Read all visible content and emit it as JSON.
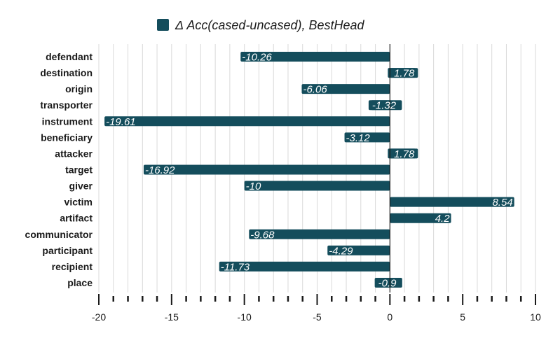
{
  "chart_data": {
    "type": "bar",
    "orientation": "horizontal",
    "title": "",
    "xlabel": "",
    "ylabel": "",
    "legend": {
      "placement": "top-center"
    },
    "series": [
      {
        "name": "Δ Acc(cased-uncased), BestHead",
        "color": "#144d5c",
        "values": [
          -10.26,
          1.78,
          -6.06,
          -1.32,
          -19.61,
          -3.12,
          1.78,
          -16.92,
          -10,
          8.54,
          4.2,
          -9.68,
          -4.29,
          -11.73,
          -0.9
        ]
      }
    ],
    "categories": [
      "defendant",
      "destination",
      "origin",
      "transporter",
      "instrument",
      "beneficiary",
      "attacker",
      "target",
      "giver",
      "victim",
      "artifact",
      "communicator",
      "participant",
      "recipient",
      "place"
    ],
    "data_labels": [
      "-10.26",
      "1.78",
      "-6.06",
      "-1.32",
      "-19.61",
      "-3.12",
      "1.78",
      "-16.92",
      "-10",
      "8.54",
      "4.2",
      "-9.68",
      "-4.29",
      "-11.73",
      "-0.9"
    ],
    "xlim": [
      -20,
      10
    ],
    "major_ticks": [
      -20,
      -15,
      -10,
      -5,
      0,
      5,
      10
    ],
    "major_tick_labels": [
      "-20",
      "-15",
      "-10",
      "-5",
      "0",
      "5",
      "10"
    ],
    "minor_tick_step": 1,
    "grid": true,
    "colors": {
      "bar": "#144d5c",
      "grid": "#d9d9d9",
      "axis": "#1a1a1a",
      "label_text": "#ffffff"
    }
  }
}
